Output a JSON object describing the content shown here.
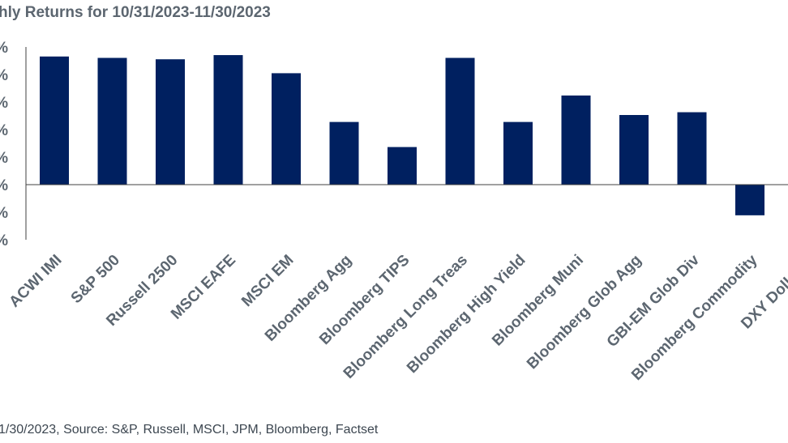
{
  "title": "hly Returns for 10/31/2023-11/30/2023",
  "footer": "1/30/2023, Source: S&P, Russell, MSCI, JPM, Bloomberg, Factset",
  "colors": {
    "bar": "#002060",
    "axis": "#404040",
    "text": "#5c6670"
  },
  "chart_data": {
    "type": "bar",
    "categories": [
      "ACWI IMI",
      "S&P 500",
      "Russell 2500",
      "MSCI EAFE",
      "MSCI EM",
      "Bloomberg Agg",
      "Bloomberg TIPS",
      "Bloomberg Long Treas",
      "Bloomberg High Yield",
      "Bloomberg Muni",
      "Bloomberg Glob Agg",
      "GBI-EM Glob Div",
      "Bloomberg Commodity",
      "DXY Dollar In"
    ],
    "series": [
      {
        "values": [
          9.2,
          9.1,
          9.0,
          9.3,
          8.0,
          4.5,
          2.7,
          9.1,
          4.5,
          6.4,
          5.0,
          5.2,
          -2.2,
          null
        ]
      }
    ],
    "ytick_labels": [
      "%",
      "%",
      "%",
      "%",
      "%",
      "%",
      "%",
      "%"
    ],
    "ylim": [
      -4,
      10
    ],
    "xlabel": "",
    "ylabel": "",
    "grid": false,
    "legend": "none"
  }
}
